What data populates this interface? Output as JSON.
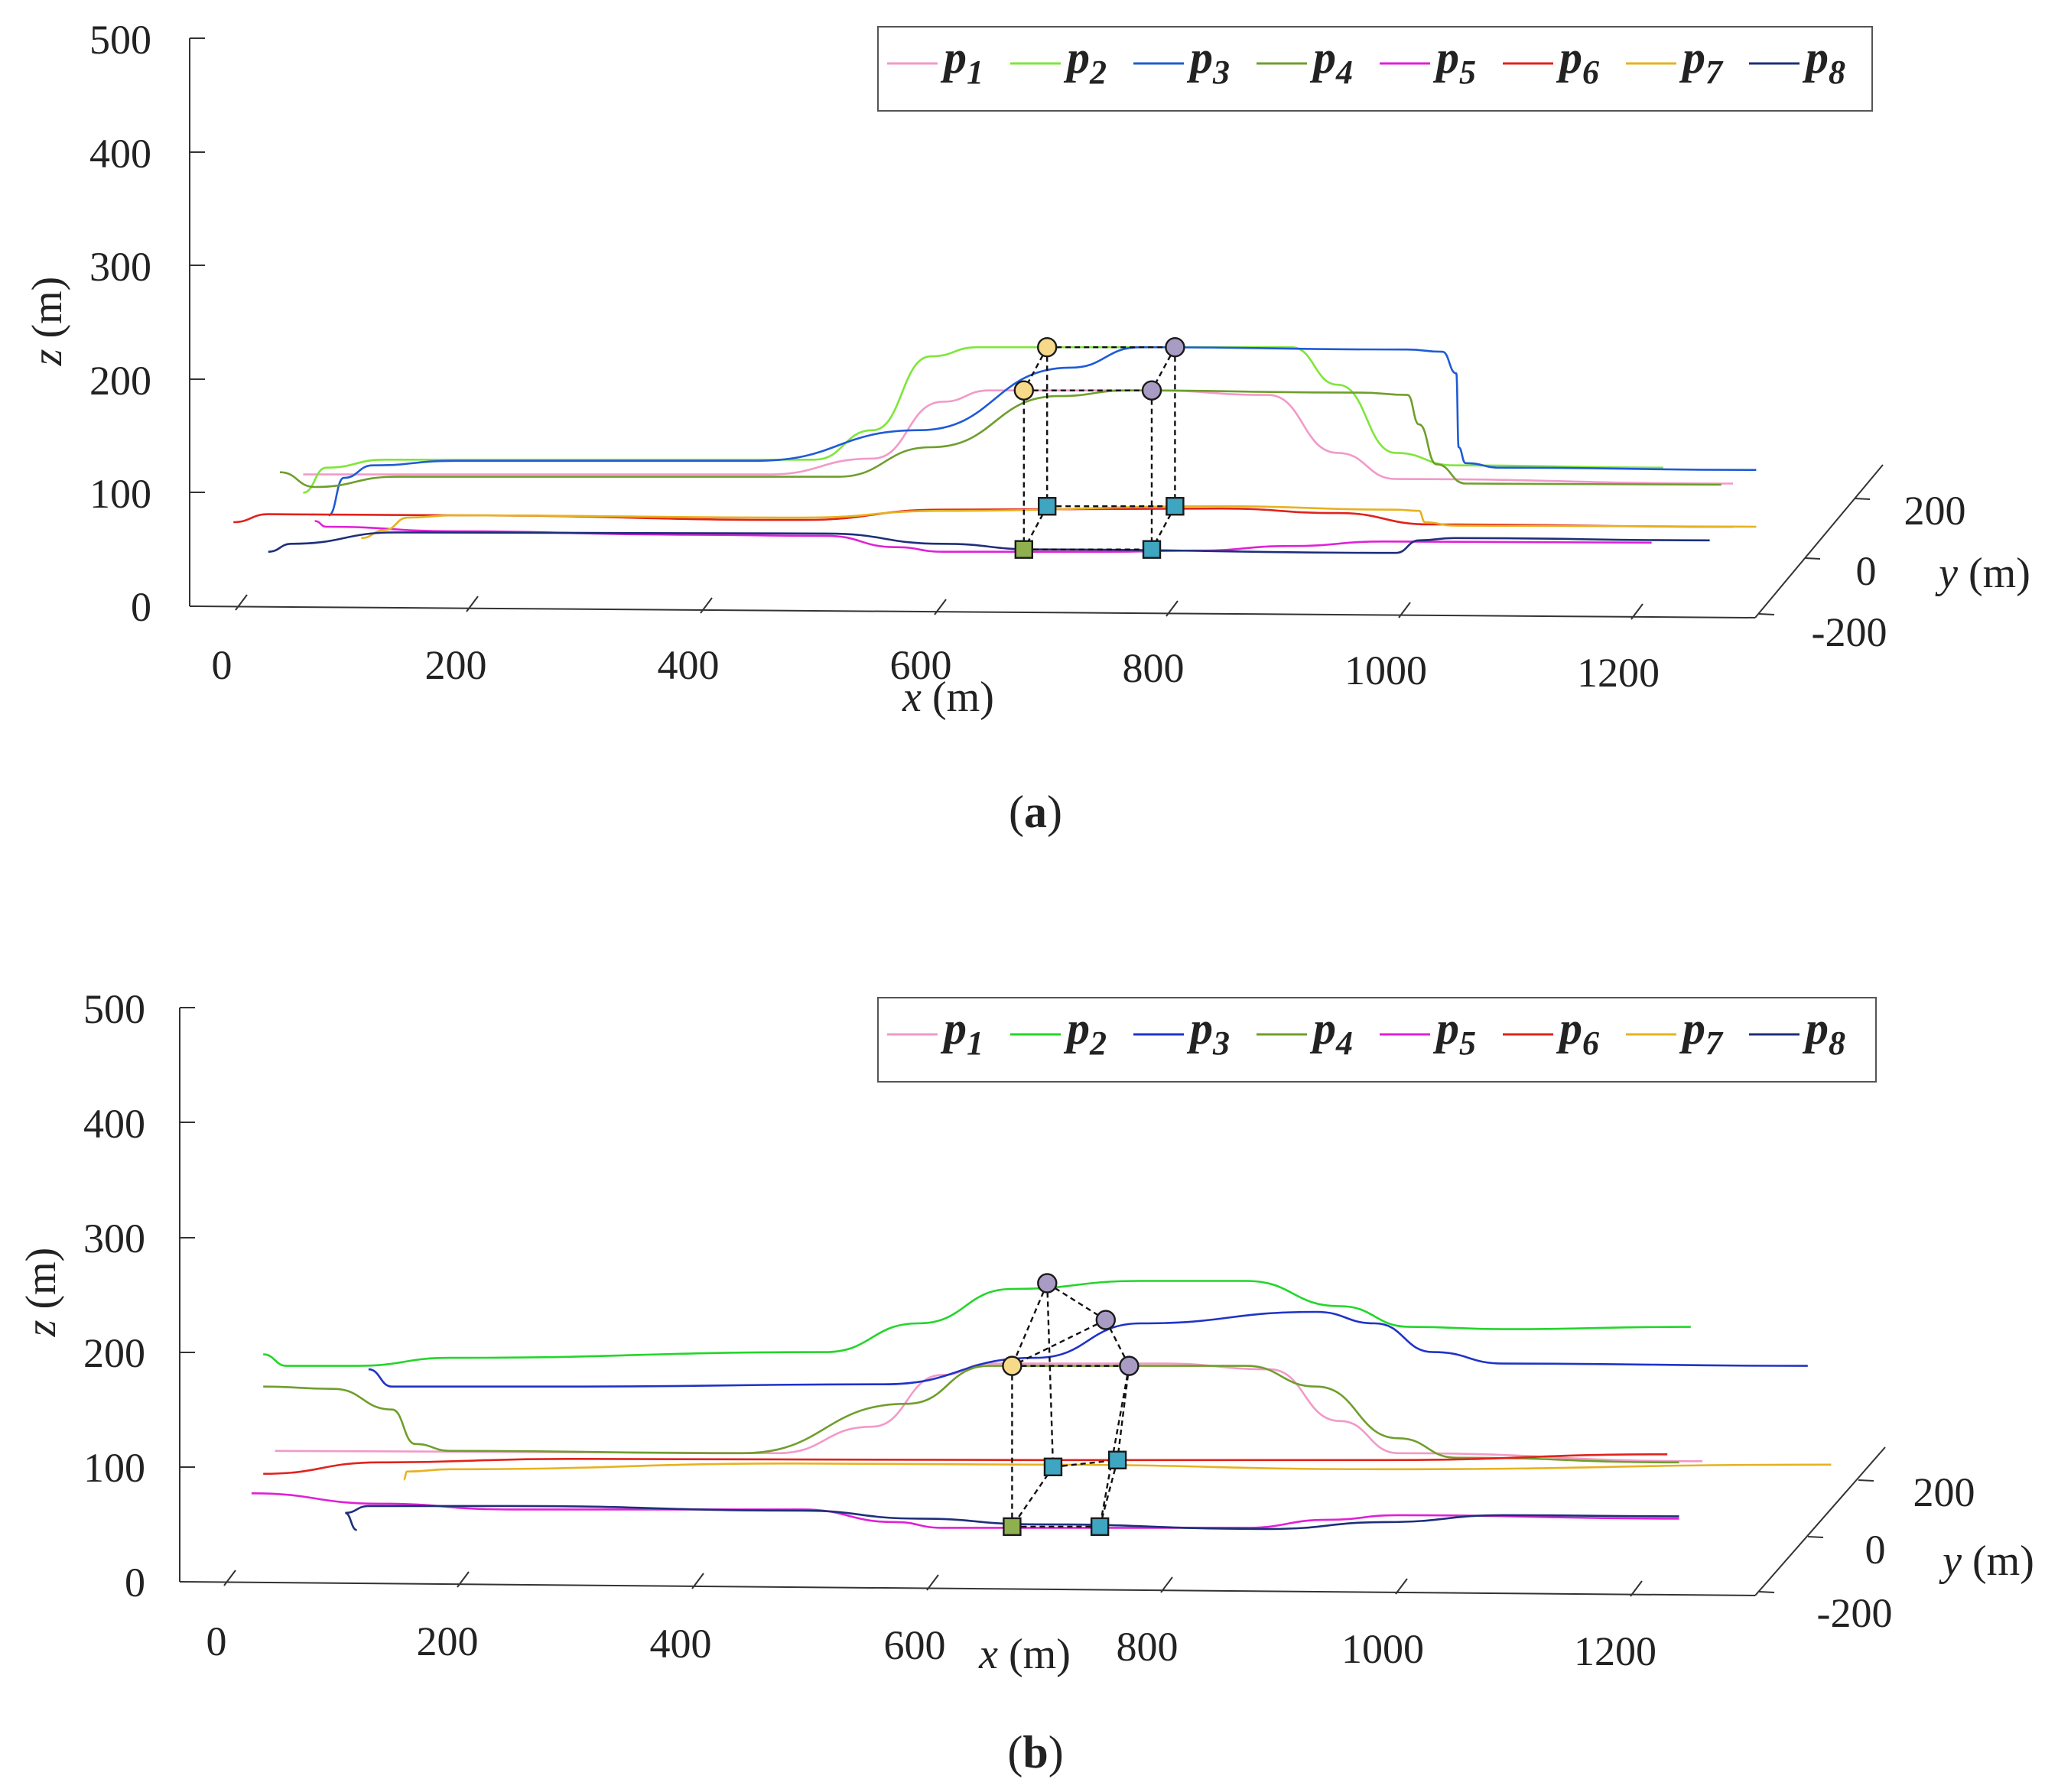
{
  "chart_data": [
    {
      "panel": "a",
      "type": "line",
      "caption_label": "a",
      "xlabel": "x",
      "ylabel": "z",
      "zlabel_y": "y",
      "unit": "(m)",
      "x_ticks": [
        "0",
        "200",
        "400",
        "600",
        "800",
        "1000",
        "1200"
      ],
      "z_ticks": [
        "0",
        "100",
        "200",
        "300",
        "400",
        "500"
      ],
      "y_ticks": [
        "200",
        "0",
        "-200"
      ],
      "xlim": [
        0,
        1300
      ],
      "zlim": [
        0,
        500
      ],
      "ylim": [
        -200,
        200
      ],
      "legend": {
        "position": "top-right",
        "entries": [
          {
            "name": "p",
            "sub": "1",
            "color": "#f29ac8"
          },
          {
            "name": "p",
            "sub": "2",
            "color": "#7ee63a"
          },
          {
            "name": "p",
            "sub": "3",
            "color": "#1f5bd6"
          },
          {
            "name": "p",
            "sub": "4",
            "color": "#6f9e2c"
          },
          {
            "name": "p",
            "sub": "5",
            "color": "#e020d8"
          },
          {
            "name": "p",
            "sub": "6",
            "color": "#e0231c"
          },
          {
            "name": "p",
            "sub": "7",
            "color": "#e6b220"
          },
          {
            "name": "p",
            "sub": "8",
            "color": "#1e2f7a"
          }
        ]
      },
      "series": [
        {
          "name": "p1",
          "color": "#f29ac8",
          "points": [
            [
              70,
              116
            ],
            [
              470,
              116
            ],
            [
              560,
              130
            ],
            [
              620,
              180
            ],
            [
              660,
              190
            ],
            [
              800,
              190
            ],
            [
              900,
              186
            ],
            [
              960,
              135
            ],
            [
              1010,
              112
            ],
            [
              1300,
              108
            ]
          ]
        },
        {
          "name": "p2",
          "color": "#7ee63a",
          "points": [
            [
              70,
              100
            ],
            [
              90,
              122
            ],
            [
              140,
              129
            ],
            [
              510,
              129
            ],
            [
              560,
              155
            ],
            [
              610,
              220
            ],
            [
              650,
              228
            ],
            [
              920,
              228
            ],
            [
              960,
              195
            ],
            [
              1010,
              135
            ],
            [
              1060,
              124
            ],
            [
              1240,
              122
            ]
          ]
        },
        {
          "name": "p3",
          "color": "#1f5bd6",
          "points": [
            [
              92,
              80
            ],
            [
              105,
              113
            ],
            [
              130,
              124
            ],
            [
              200,
              128
            ],
            [
              460,
              128
            ],
            [
              600,
              155
            ],
            [
              730,
              210
            ],
            [
              790,
              228
            ],
            [
              1020,
              226
            ],
            [
              1050,
              224
            ],
            [
              1062,
              205
            ],
            [
              1064,
              140
            ],
            [
              1070,
              126
            ],
            [
              1100,
              122
            ],
            [
              1320,
              120
            ]
          ]
        },
        {
          "name": "p4",
          "color": "#6f9e2c",
          "points": [
            [
              50,
              118
            ],
            [
              80,
              105
            ],
            [
              150,
              114
            ],
            [
              530,
              114
            ],
            [
              610,
              140
            ],
            [
              720,
              185
            ],
            [
              780,
              190
            ],
            [
              980,
              188
            ],
            [
              1020,
              186
            ],
            [
              1030,
              160
            ],
            [
              1045,
              125
            ],
            [
              1070,
              108
            ],
            [
              1290,
              107
            ]
          ]
        },
        {
          "name": "p5",
          "color": "#e020d8",
          "points": [
            [
              80,
              75
            ],
            [
              90,
              70
            ],
            [
              200,
              66
            ],
            [
              400,
              63
            ],
            [
              520,
              62
            ],
            [
              580,
              52
            ],
            [
              620,
              48
            ],
            [
              760,
              48
            ],
            [
              840,
              49
            ],
            [
              920,
              53
            ],
            [
              1000,
              57
            ],
            [
              1230,
              56
            ]
          ]
        },
        {
          "name": "p6",
          "color": "#e0231c",
          "points": [
            [
              10,
              74
            ],
            [
              40,
              81
            ],
            [
              200,
              80
            ],
            [
              500,
              76
            ],
            [
              620,
              85
            ],
            [
              860,
              86
            ],
            [
              960,
              82
            ],
            [
              1040,
              72
            ],
            [
              1300,
              70
            ]
          ]
        },
        {
          "name": "p7",
          "color": "#e6b220",
          "points": [
            [
              120,
              60
            ],
            [
              140,
              67
            ],
            [
              160,
              78
            ],
            [
              200,
              80
            ],
            [
              500,
              78
            ],
            [
              620,
              84
            ],
            [
              860,
              88
            ],
            [
              1010,
              85
            ],
            [
              1030,
              84
            ],
            [
              1035,
              74
            ],
            [
              1060,
              71
            ],
            [
              1320,
              70
            ]
          ]
        },
        {
          "name": "p8",
          "color": "#1e2f7a",
          "points": [
            [
              40,
              48
            ],
            [
              60,
              55
            ],
            [
              150,
              65
            ],
            [
              520,
              64
            ],
            [
              620,
              55
            ],
            [
              700,
              50
            ],
            [
              1010,
              47
            ],
            [
              1030,
              58
            ],
            [
              1060,
              60
            ],
            [
              1280,
              58
            ]
          ]
        }
      ],
      "formation": {
        "nodes": [
          {
            "x": 710,
            "z": 228,
            "fill": "#f7d98a",
            "shape": "circle"
          },
          {
            "x": 820,
            "z": 228,
            "fill": "#a99cc4",
            "shape": "circle"
          },
          {
            "x": 690,
            "z": 190,
            "fill": "#f7d98a",
            "shape": "circle"
          },
          {
            "x": 800,
            "z": 190,
            "fill": "#a99cc4",
            "shape": "circle"
          },
          {
            "x": 710,
            "z": 88,
            "fill": "#3fa6c2",
            "shape": "square"
          },
          {
            "x": 820,
            "z": 88,
            "fill": "#3fa6c2",
            "shape": "square"
          },
          {
            "x": 690,
            "z": 50,
            "fill": "#8fb04e",
            "shape": "square"
          },
          {
            "x": 800,
            "z": 50,
            "fill": "#3fa6c2",
            "shape": "square"
          }
        ],
        "edges": [
          [
            0,
            1
          ],
          [
            2,
            3
          ],
          [
            4,
            5
          ],
          [
            6,
            7
          ],
          [
            0,
            2
          ],
          [
            1,
            3
          ],
          [
            4,
            6
          ],
          [
            5,
            7
          ],
          [
            0,
            4
          ],
          [
            1,
            5
          ],
          [
            2,
            6
          ],
          [
            3,
            7
          ]
        ]
      }
    },
    {
      "panel": "b",
      "type": "line",
      "caption_label": "b",
      "xlabel": "x",
      "ylabel": "z",
      "zlabel_y": "y",
      "unit": "(m)",
      "x_ticks": [
        "0",
        "200",
        "400",
        "600",
        "800",
        "1000",
        "1200"
      ],
      "z_ticks": [
        "0",
        "100",
        "200",
        "300",
        "400",
        "500"
      ],
      "y_ticks": [
        "200",
        "0",
        "-200"
      ],
      "xlim": [
        0,
        1300
      ],
      "zlim": [
        0,
        500
      ],
      "ylim": [
        -200,
        200
      ],
      "legend": {
        "position": "top-right",
        "entries": [
          {
            "name": "p",
            "sub": "1",
            "color": "#f29ac8"
          },
          {
            "name": "p",
            "sub": "2",
            "color": "#22d62a"
          },
          {
            "name": "p",
            "sub": "3",
            "color": "#1f33c8"
          },
          {
            "name": "p",
            "sub": "4",
            "color": "#6f9e2c"
          },
          {
            "name": "p",
            "sub": "5",
            "color": "#e020d8"
          },
          {
            "name": "p",
            "sub": "6",
            "color": "#e0231c"
          },
          {
            "name": "p",
            "sub": "7",
            "color": "#e6b220"
          },
          {
            "name": "p",
            "sub": "8",
            "color": "#1e2f7a"
          }
        ]
      },
      "series": [
        {
          "name": "p1",
          "color": "#f29ac8",
          "points": [
            [
              50,
              114
            ],
            [
              480,
              112
            ],
            [
              560,
              135
            ],
            [
              620,
              180
            ],
            [
              660,
              190
            ],
            [
              810,
              190
            ],
            [
              900,
              185
            ],
            [
              960,
              140
            ],
            [
              1010,
              112
            ],
            [
              1270,
              105
            ]
          ]
        },
        {
          "name": "p2",
          "color": "#22d62a",
          "points": [
            [
              40,
              198
            ],
            [
              60,
              188
            ],
            [
              120,
              188
            ],
            [
              200,
              195
            ],
            [
              520,
              200
            ],
            [
              600,
              225
            ],
            [
              680,
              255
            ],
            [
              790,
              262
            ],
            [
              880,
              262
            ],
            [
              960,
              240
            ],
            [
              1020,
              222
            ],
            [
              1100,
              220
            ],
            [
              1260,
              222
            ]
          ]
        },
        {
          "name": "p3",
          "color": "#1f33c8",
          "points": [
            [
              130,
              185
            ],
            [
              150,
              170
            ],
            [
              300,
              170
            ],
            [
              570,
              172
            ],
            [
              700,
              195
            ],
            [
              790,
              225
            ],
            [
              940,
              235
            ],
            [
              990,
              225
            ],
            [
              1040,
              200
            ],
            [
              1100,
              190
            ],
            [
              1360,
              188
            ]
          ]
        },
        {
          "name": "p4",
          "color": "#6f9e2c",
          "points": [
            [
              40,
              170
            ],
            [
              100,
              168
            ],
            [
              150,
              150
            ],
            [
              170,
              120
            ],
            [
              200,
              114
            ],
            [
              450,
              112
            ],
            [
              590,
              155
            ],
            [
              660,
              188
            ],
            [
              880,
              188
            ],
            [
              940,
              170
            ],
            [
              1010,
              125
            ],
            [
              1060,
              108
            ],
            [
              1250,
              104
            ]
          ]
        },
        {
          "name": "p5",
          "color": "#e020d8",
          "points": [
            [
              30,
              77
            ],
            [
              140,
              68
            ],
            [
              250,
              63
            ],
            [
              500,
              63
            ],
            [
              580,
              52
            ],
            [
              620,
              47
            ],
            [
              880,
              47
            ],
            [
              950,
              54
            ],
            [
              1010,
              58
            ],
            [
              1250,
              55
            ]
          ]
        },
        {
          "name": "p6",
          "color": "#e0231c",
          "points": [
            [
              40,
              94
            ],
            [
              140,
              104
            ],
            [
              300,
              107
            ],
            [
              700,
              106
            ],
            [
              1000,
              106
            ],
            [
              1240,
              111
            ]
          ]
        },
        {
          "name": "p7",
          "color": "#e6b220",
          "points": [
            [
              160,
              89
            ],
            [
              163,
              96
            ],
            [
              200,
              98
            ],
            [
              500,
              103
            ],
            [
              700,
              102
            ],
            [
              1000,
              98
            ],
            [
              1380,
              102
            ]
          ]
        },
        {
          "name": "p8",
          "color": "#1e2f7a",
          "points": [
            [
              120,
              45
            ],
            [
              110,
              60
            ],
            [
              130,
              66
            ],
            [
              250,
              66
            ],
            [
              500,
              62
            ],
            [
              600,
              55
            ],
            [
              700,
              50
            ],
            [
              900,
              46
            ],
            [
              1000,
              52
            ],
            [
              1100,
              58
            ],
            [
              1250,
              57
            ]
          ]
        }
      ],
      "formation": {
        "nodes": [
          {
            "x": 710,
            "z": 260,
            "fill": "#a99cc4",
            "shape": "circle"
          },
          {
            "x": 760,
            "z": 228,
            "fill": "#a99cc4",
            "shape": "circle"
          },
          {
            "x": 680,
            "z": 188,
            "fill": "#f7d98a",
            "shape": "circle"
          },
          {
            "x": 780,
            "z": 188,
            "fill": "#a99cc4",
            "shape": "circle"
          },
          {
            "x": 715,
            "z": 100,
            "fill": "#3fa6c2",
            "shape": "square"
          },
          {
            "x": 770,
            "z": 106,
            "fill": "#3fa6c2",
            "shape": "square"
          },
          {
            "x": 680,
            "z": 48,
            "fill": "#8fb04e",
            "shape": "square"
          },
          {
            "x": 755,
            "z": 48,
            "fill": "#3fa6c2",
            "shape": "square"
          }
        ],
        "edges": [
          [
            0,
            1
          ],
          [
            2,
            3
          ],
          [
            0,
            2
          ],
          [
            1,
            3
          ],
          [
            1,
            2
          ],
          [
            4,
            5
          ],
          [
            6,
            7
          ],
          [
            4,
            6
          ],
          [
            5,
            7
          ],
          [
            0,
            4
          ],
          [
            3,
            5
          ],
          [
            2,
            6
          ],
          [
            3,
            7
          ]
        ]
      }
    }
  ]
}
